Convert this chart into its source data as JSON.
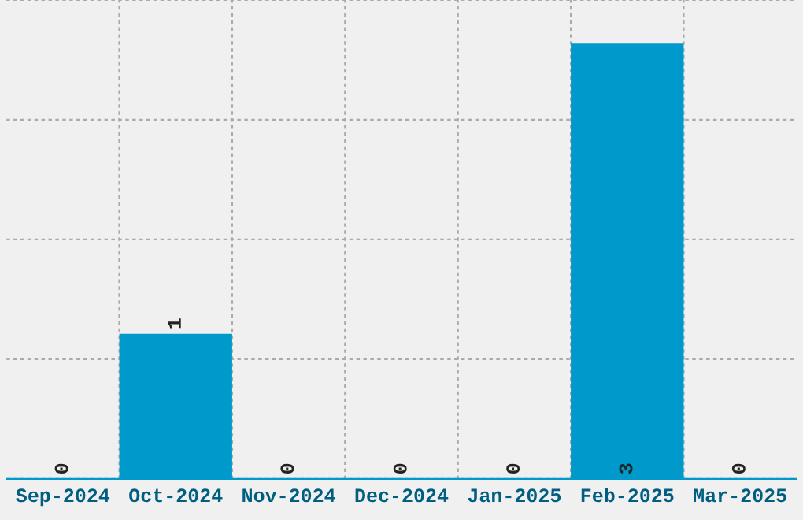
{
  "chart_data": {
    "type": "bar",
    "categories": [
      "Sep-2024",
      "Oct-2024",
      "Nov-2024",
      "Dec-2024",
      "Jan-2025",
      "Feb-2025",
      "Mar-2025"
    ],
    "values": [
      0,
      1,
      0,
      0,
      0,
      3,
      0
    ],
    "color": "#0099cc",
    "ylim": [
      0,
      3.3
    ],
    "yticks": [
      {
        "value": 0,
        "label": null
      },
      {
        "value": 0.825,
        "label": null
      },
      {
        "value": 1.65,
        "label": null
      },
      {
        "value": 2.475,
        "label": null
      },
      {
        "value": 3.3,
        "label": null
      }
    ],
    "tick_labels": "x",
    "grid": true,
    "data_labels": true
  }
}
